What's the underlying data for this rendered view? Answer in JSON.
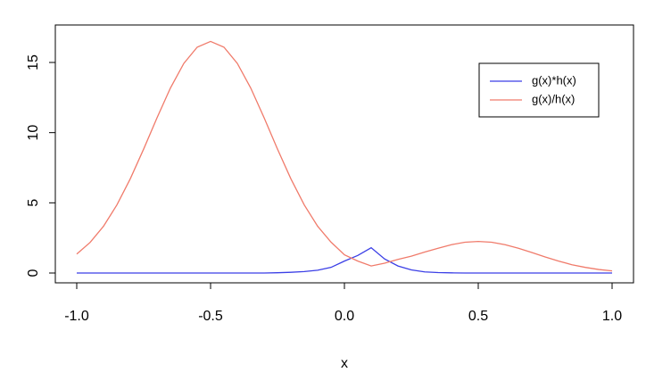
{
  "chart_data": {
    "type": "line",
    "x_label": "x",
    "x": [
      -1.0,
      -0.95,
      -0.9,
      -0.85,
      -0.8,
      -0.75,
      -0.7,
      -0.65,
      -0.6,
      -0.55,
      -0.5,
      -0.45,
      -0.4,
      -0.35,
      -0.3,
      -0.25,
      -0.2,
      -0.15,
      -0.1,
      -0.05,
      0.0,
      0.05,
      0.1,
      0.15,
      0.2,
      0.25,
      0.3,
      0.35,
      0.4,
      0.45,
      0.5,
      0.55,
      0.6,
      0.65,
      0.7,
      0.75,
      0.8,
      0.85,
      0.9,
      0.95,
      1.0
    ],
    "series": [
      {
        "name": "g(x)*h(x)",
        "color": "#3b3fe6",
        "values": [
          0,
          0,
          0,
          0,
          0,
          0,
          0,
          0,
          0,
          0,
          0,
          0,
          0,
          0,
          0,
          0.02,
          0.05,
          0.1,
          0.2,
          0.4,
          0.85,
          1.25,
          1.8,
          1.0,
          0.5,
          0.22,
          0.08,
          0.03,
          0.01,
          0,
          0,
          0,
          0,
          0,
          0,
          0,
          0,
          0,
          0,
          0,
          0
        ]
      },
      {
        "name": "g(x)/h(x)",
        "color": "#f07b6b",
        "values": [
          1.35,
          2.18,
          3.33,
          4.85,
          6.71,
          8.83,
          11.06,
          13.18,
          14.93,
          16.09,
          16.5,
          16.09,
          14.93,
          13.18,
          11.06,
          8.83,
          6.71,
          4.85,
          3.33,
          2.2,
          1.3,
          0.85,
          0.5,
          0.7,
          0.97,
          1.2,
          1.49,
          1.76,
          2.02,
          2.19,
          2.25,
          2.19,
          2.02,
          1.76,
          1.46,
          1.14,
          0.85,
          0.59,
          0.4,
          0.25,
          0.15
        ]
      }
    ],
    "xlim": [
      -1.08,
      1.08
    ],
    "ylim": [
      -0.7,
      17.67
    ],
    "xticks": [
      {
        "value": -1,
        "label": "-1.0"
      },
      {
        "value": -0.5,
        "label": "-0.5"
      },
      {
        "value": 0,
        "label": "0.0"
      },
      {
        "value": 0.5,
        "label": "0.5"
      },
      {
        "value": 1,
        "label": "1.0"
      }
    ],
    "yticks": [
      0,
      5,
      10,
      15
    ],
    "legend": "topright"
  }
}
